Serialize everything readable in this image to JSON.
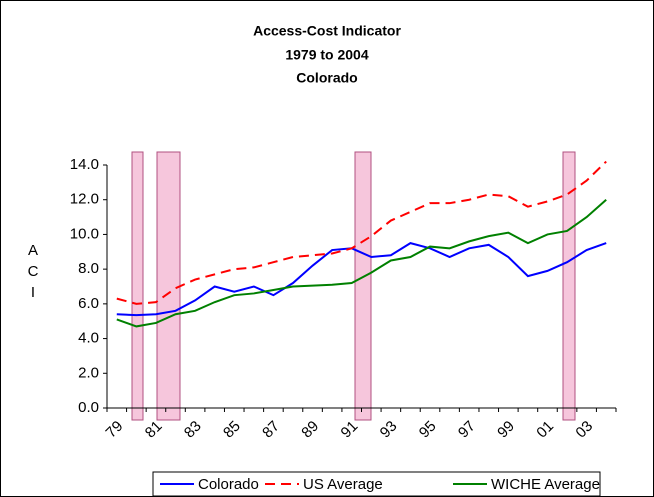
{
  "chart_data": {
    "type": "line",
    "title": "Access-Cost Indicator",
    "subtitle": "1979 to 2004",
    "region": "Colorado",
    "y_label": "ACI",
    "categories": [
      "79",
      null,
      "81",
      null,
      "83",
      null,
      "85",
      null,
      "87",
      null,
      "89",
      null,
      "91",
      null,
      "93",
      null,
      "95",
      null,
      "97",
      null,
      "99",
      null,
      "01",
      null,
      "03",
      null
    ],
    "series": [
      {
        "name": "Colorado",
        "color": "#0000ff",
        "dash": false,
        "values": [
          5.4,
          5.35,
          5.4,
          5.6,
          6.2,
          7.0,
          6.7,
          7.0,
          6.5,
          7.2,
          8.2,
          9.1,
          9.2,
          8.7,
          8.8,
          9.5,
          9.2,
          8.7,
          9.2,
          9.4,
          8.7,
          7.6,
          7.9,
          8.4,
          9.1,
          9.5
        ]
      },
      {
        "name": "US Average",
        "color": "#ff0000",
        "dash": true,
        "values": [
          6.3,
          6.0,
          6.1,
          6.9,
          7.4,
          7.7,
          8.0,
          8.1,
          8.4,
          8.7,
          8.8,
          8.9,
          9.2,
          9.9,
          10.8,
          11.3,
          11.8,
          11.8,
          12.0,
          12.3,
          12.2,
          11.6,
          11.9,
          12.3,
          13.1,
          14.2
        ]
      },
      {
        "name": "WICHE Average",
        "color": "#008000",
        "dash": false,
        "values": [
          5.1,
          4.7,
          4.9,
          5.4,
          5.6,
          6.1,
          6.5,
          6.6,
          6.8,
          7.0,
          7.05,
          7.1,
          7.2,
          7.8,
          8.5,
          8.7,
          9.3,
          9.2,
          9.6,
          9.9,
          10.1,
          9.5,
          10.0,
          10.2,
          11.0,
          12.0
        ]
      }
    ],
    "ylim": [
      0,
      14
    ],
    "yticks": [
      {
        "value": 0,
        "label": "0.0"
      },
      {
        "value": 2,
        "label": "2.0"
      },
      {
        "value": 4,
        "label": "4.0"
      },
      {
        "value": 6,
        "label": "6.0"
      },
      {
        "value": 8,
        "label": "8.0"
      },
      {
        "value": 10,
        "label": "10.0"
      },
      {
        "value": 12,
        "label": "12.0"
      },
      {
        "value": 14,
        "label": "14.0"
      }
    ],
    "grid": false,
    "legend": "bottom"
  }
}
